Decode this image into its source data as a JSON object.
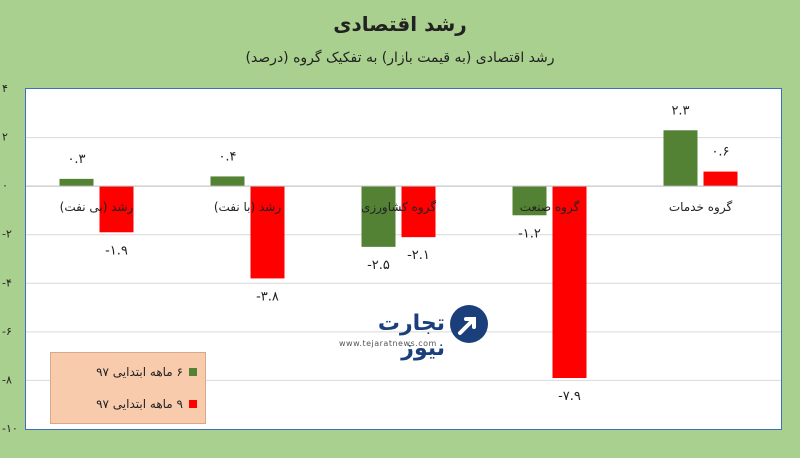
{
  "title": "رشد اقتصادی",
  "subtitle": "رشد اقتصادی (به قیمت بازار) به تفکیک گروه (درصد)",
  "logo": {
    "text": "تجارت نیوز",
    "url": "www.tejaratnews.com"
  },
  "colors": {
    "series1": "#548235",
    "series2": "#ff0000",
    "background": "#a9d08e",
    "legend_bg": "#f8cbad"
  },
  "chart_data": {
    "type": "bar",
    "title": "رشد اقتصادی",
    "subtitle": "رشد اقتصادی (به قیمت بازار) به تفکیک گروه (درصد)",
    "categories": [
      "رشد (بی نفت)",
      "رشد (با نفت)",
      "گروه کشاورزی",
      "گروه صنعت",
      "گروه خدمات"
    ],
    "series": [
      {
        "name": "۶ ماهه ابتدایی ۹۷",
        "color": "#548235",
        "values": [
          0.3,
          0.4,
          -2.5,
          -1.2,
          2.3
        ],
        "labels": [
          "۰.۳",
          "۰.۴",
          "-۲.۵",
          "-۱.۲",
          "۲.۳"
        ]
      },
      {
        "name": "۹ ماهه ابتدایی ۹۷",
        "color": "#ff0000",
        "values": [
          -1.9,
          -3.8,
          -2.1,
          -7.9,
          0.6
        ],
        "labels": [
          "-۱.۹",
          "-۳.۸",
          "-۲.۱",
          "-۷.۹",
          "۰.۶"
        ]
      }
    ],
    "ylim": [
      -10,
      4
    ],
    "yticks": [
      4,
      2,
      0,
      -2,
      -4,
      -6,
      -8,
      -10
    ],
    "ytick_labels": [
      "۴",
      "۲",
      "۰",
      "-۲",
      "-۴",
      "-۶",
      "-۸",
      "-۱۰"
    ],
    "grid": true,
    "legend_position": "bottom-left"
  }
}
